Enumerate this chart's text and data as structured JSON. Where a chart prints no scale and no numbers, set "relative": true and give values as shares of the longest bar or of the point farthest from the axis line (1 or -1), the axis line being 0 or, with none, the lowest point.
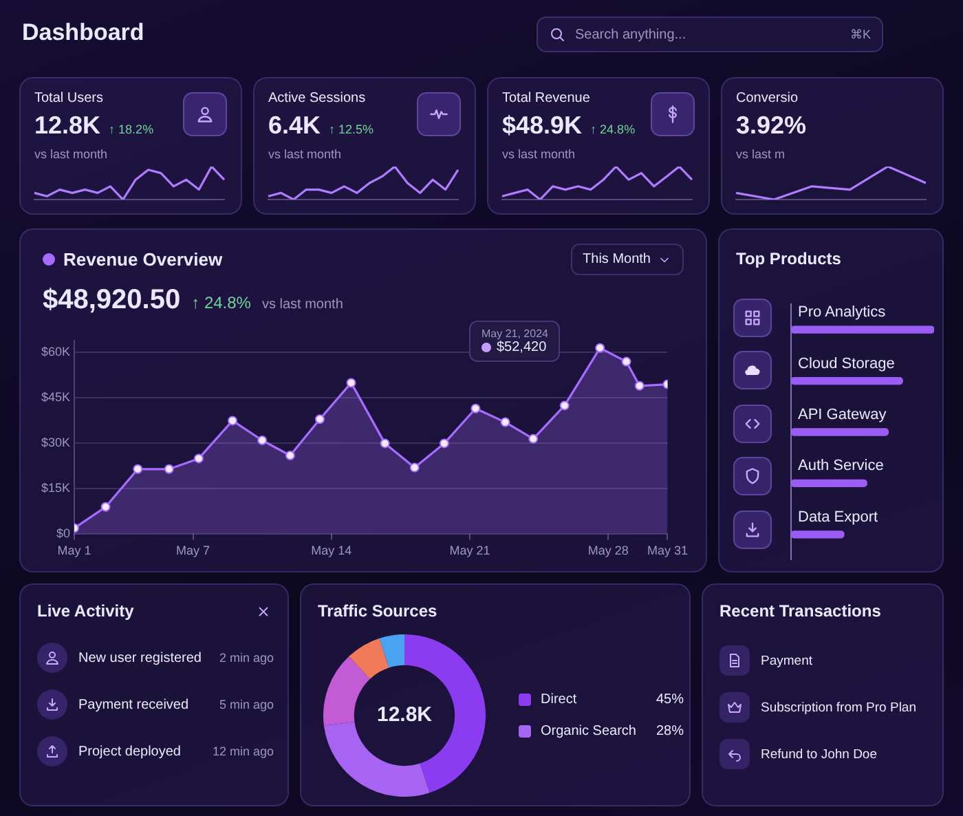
{
  "chart_data": [
    {
      "type": "other",
      "title": "Dashboard",
      "annotations": [
        "Search anything...",
        "⌘K"
      ]
    },
    {
      "type": "line",
      "title": "Total Users",
      "annotations": [
        "12.8K",
        "↑ 18.2%",
        "vs last month"
      ],
      "relative": true,
      "categories": [
        null,
        null,
        null,
        null,
        null,
        null,
        null,
        null,
        null,
        null,
        null,
        null,
        null,
        null,
        null,
        null
      ],
      "values": [
        0.2,
        0.1,
        0.3,
        0.2,
        0.3,
        0.2,
        0.4,
        0,
        0.6,
        0.9,
        0.8,
        0.4,
        0.6,
        0.3,
        1,
        0.6
      ],
      "color": "#b07cff"
    },
    {
      "type": "line",
      "title": "Active Sessions",
      "annotations": [
        "6.4K",
        "↑ 12.5%",
        "vs last month"
      ],
      "relative": true,
      "categories": [
        null,
        null,
        null,
        null,
        null,
        null,
        null,
        null,
        null,
        null,
        null,
        null,
        null,
        null,
        null,
        null
      ],
      "values": [
        0.1,
        0.2,
        0,
        0.3,
        0.3,
        0.2,
        0.4,
        0.2,
        0.5,
        0.7,
        1,
        0.5,
        0.2,
        0.6,
        0.3,
        0.9
      ],
      "color": "#b07cff"
    },
    {
      "type": "line",
      "title": "Total Revenue",
      "annotations": [
        "$48.9K",
        "↑ 24.8%",
        "vs last month"
      ],
      "relative": true,
      "categories": [
        null,
        null,
        null,
        null,
        null,
        null,
        null,
        null,
        null,
        null,
        null,
        null,
        null,
        null,
        null,
        null
      ],
      "values": [
        0.1,
        0.2,
        0.3,
        0,
        0.4,
        0.3,
        0.4,
        0.3,
        0.6,
        1,
        0.6,
        0.8,
        0.4,
        0.7,
        1,
        0.6
      ],
      "color": "#b07cff"
    },
    {
      "type": "line",
      "title": "Conversio",
      "annotations": [
        "3.92%",
        "vs last m"
      ],
      "relative": true,
      "categories": [
        null,
        null,
        null,
        null,
        null,
        null
      ],
      "values": [
        0.2,
        0,
        0.4,
        0.3,
        1,
        0.5
      ],
      "color": "#b07cff"
    },
    {
      "type": "area",
      "title": "Revenue Overview",
      "subtitle": "$48,920.50",
      "annotations": [
        "↑ 24.8%",
        "vs last month",
        "This Month",
        "May 21, 2024",
        "$52,420"
      ],
      "x": [
        "2024-05-01",
        "2024-05-02T14:00",
        "2024-05-04T05:00",
        "2024-05-05T19:00",
        "2024-05-07T07:00",
        "2024-05-09",
        "2024-05-10T12:00",
        "2024-05-11T22:00",
        "2024-05-13T10:00",
        "2024-05-15",
        "2024-05-16T17:00",
        "2024-05-18T05:00",
        "2024-05-19T17:00",
        "2024-05-21T07:00",
        "2024-05-22T19:00",
        "2024-05-24T05:00",
        "2024-05-25T19:00",
        "2024-05-27T14:00",
        "2024-05-28T22:00",
        "2024-05-29T14:00",
        "2024-05-31"
      ],
      "values": [
        2,
        9,
        21.5,
        21.5,
        25,
        37.5,
        31,
        26,
        38,
        50,
        30,
        22,
        30,
        41.5,
        37,
        31.5,
        42.5,
        61.5,
        57,
        49,
        49.5
      ],
      "color": "#a66cff",
      "marker": "circle",
      "grid": "y",
      "xlim": [
        "2024-05-01",
        "2024-05-31"
      ],
      "xticks": [
        {
          "value": "2024-05-01",
          "label": "May 1"
        },
        {
          "value": "2024-05-07",
          "label": "May 7"
        },
        {
          "value": "2024-05-14",
          "label": "May 14"
        },
        {
          "value": "2024-05-21",
          "label": "May 21"
        },
        {
          "value": "2024-05-28",
          "label": "May 28"
        },
        {
          "value": "2024-05-31",
          "label": "May 31"
        }
      ],
      "ylim": [
        0,
        64
      ],
      "yticks": [
        {
          "value": 0,
          "label": "$0"
        },
        {
          "value": 15,
          "label": "$15K"
        },
        {
          "value": 30,
          "label": "$30K"
        },
        {
          "value": 45,
          "label": "$45K"
        },
        {
          "value": 60,
          "label": "$60K"
        }
      ]
    },
    {
      "type": "bar",
      "title": "Top Products",
      "orientation": "horizontal",
      "relative": true,
      "categories": [
        "Pro Analytics",
        "Cloud Storage",
        "API Gateway",
        "Auth Service",
        "Data Export"
      ],
      "values": [
        1,
        0.78,
        0.68,
        0.53,
        0.37
      ],
      "color": "#9b5cf6"
    },
    {
      "type": "other",
      "title": "Live Activity",
      "annotations": [
        "New user registered",
        "2 min ago",
        "Payment received",
        "5 min ago",
        "Project deployed",
        "12 min ago"
      ]
    },
    {
      "type": "donut",
      "title": "Traffic Sources",
      "annotations": [
        "12.8K"
      ],
      "categories": [
        "Direct",
        "Organic Search",
        null,
        null,
        null
      ],
      "values": [
        45,
        28,
        15,
        7,
        5
      ],
      "value_labels": [
        "45%",
        "28%",
        null,
        null,
        null
      ],
      "colors": [
        "#8b3cf0",
        "#a764f2",
        "#c35ad6",
        "#f07a5a",
        "#4aa3f0"
      ],
      "legend": "right"
    },
    {
      "type": "other",
      "title": "Recent Transactions",
      "annotations": [
        "Payment",
        "Subscription from Pro Plan",
        "Refund to John Doe"
      ]
    }
  ]
}
